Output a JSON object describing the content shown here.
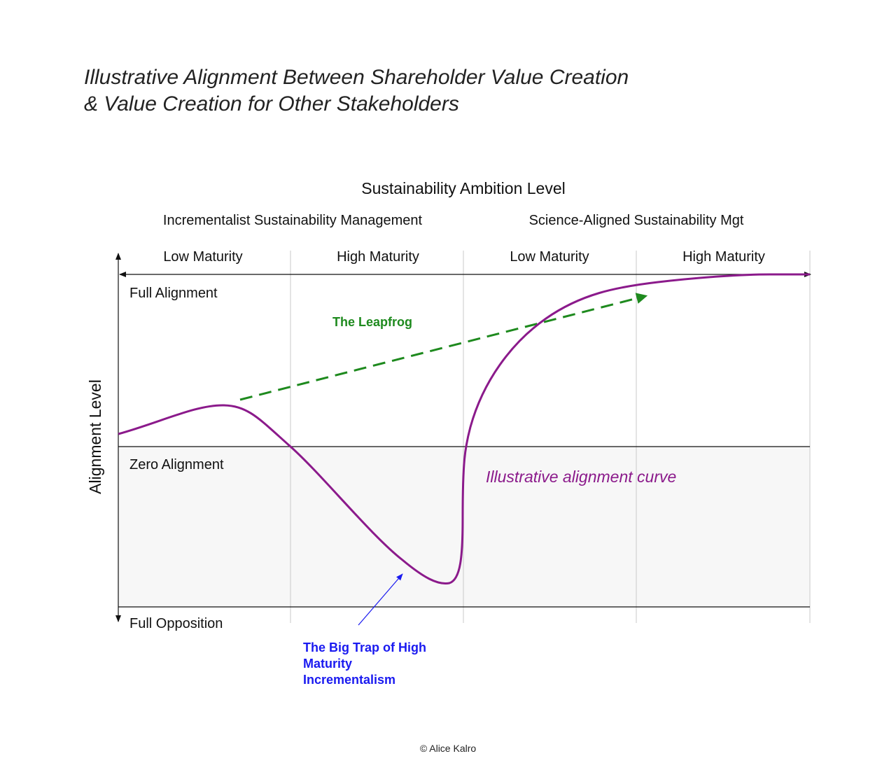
{
  "title": {
    "line1": "Illustrative Alignment Between Shareholder Value Creation",
    "line2": "& Value Creation for Other Stakeholders"
  },
  "x_axis": {
    "title": "Sustainability Ambition Level",
    "groups": [
      "Incrementalist Sustainability Management",
      "Science-Aligned Sustainability Mgt"
    ],
    "columns": [
      "Low Maturity",
      "High Maturity",
      "Low Maturity",
      "High Maturity"
    ]
  },
  "y_axis": {
    "title": "Alignment Level",
    "levels": {
      "top": "Full Alignment",
      "middle": "Zero Alignment",
      "bottom": "Full Opposition"
    }
  },
  "annotations": {
    "leapfrog": "The Leapfrog",
    "curve": "Illustrative alignment curve",
    "trap_lines": [
      "The Big Trap of High",
      "Maturity",
      "Incrementalism"
    ]
  },
  "colors": {
    "curve": "#8b1a8b",
    "leapfrog": "#1e8a1e",
    "trap": "#1a1af0",
    "negative_zone": "#f7f7f7",
    "grid": "#c8c8c8"
  },
  "copyright": "© Alice Kalro"
}
